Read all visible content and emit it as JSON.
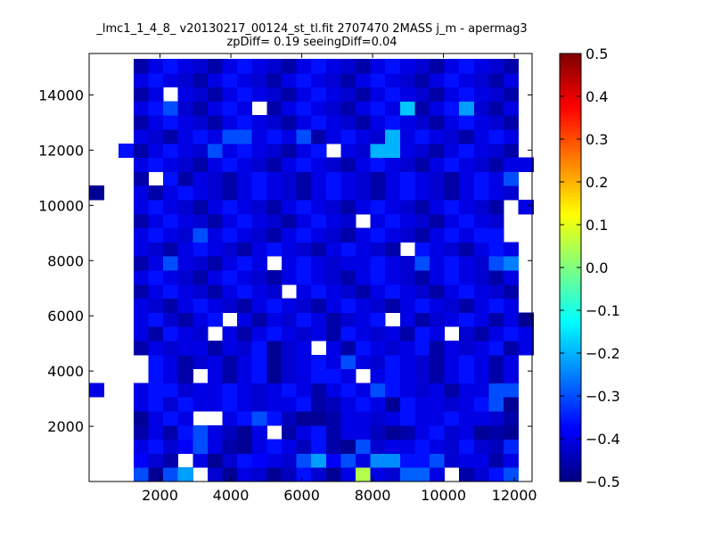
{
  "chart_data": {
    "type": "heatmap",
    "title_lines": [
      "_lmc1_1_4_8_ v20130217_00124_st_tl.fit 2707470 2MASS j_m - apermag3",
      "zpDiff= 0.19 seeingDiff=0.04"
    ],
    "xlabel": "",
    "ylabel": "",
    "x_range": [
      0,
      12500
    ],
    "y_range": [
      0,
      15500
    ],
    "x_ticks": [
      2000,
      4000,
      6000,
      8000,
      10000,
      12000
    ],
    "y_ticks": [
      2000,
      4000,
      6000,
      8000,
      10000,
      12000,
      14000
    ],
    "grid": false,
    "colormap": "jet",
    "colorbar": {
      "min": -0.5,
      "max": 0.5,
      "ticks": [
        -0.5,
        -0.4,
        -0.3,
        -0.2,
        -0.1,
        0.0,
        0.1,
        0.2,
        0.3,
        0.4,
        0.5
      ],
      "tick_labels": [
        "−0.5",
        "−0.4",
        "−0.3",
        "−0.2",
        "−0.1",
        "0.0",
        "0.1",
        "0.2",
        "0.3",
        "0.4",
        "0.5"
      ]
    },
    "x_bin_edges": [
      0,
      418,
      835,
      1253,
      1671,
      2089,
      2506,
      2924,
      3342,
      3759,
      4177,
      4595,
      5013,
      5430,
      5848,
      6266,
      6684,
      7101,
      7519,
      7937,
      8354,
      8772,
      9190,
      9608,
      10025,
      10443,
      10861,
      11278,
      11696,
      12114,
      12532
    ],
    "y_bin_edges": [
      0,
      510,
      1020,
      1531,
      2041,
      2551,
      3061,
      3571,
      4082,
      4592,
      5102,
      5612,
      6122,
      6633,
      7143,
      7653,
      8163,
      8673,
      9184,
      9694,
      10204,
      10714,
      11224,
      11735,
      12245,
      12755,
      13265,
      13776,
      14286,
      14796,
      15306
    ],
    "null_value": "empty bin (white)",
    "cells": [
      [
        null,
        null,
        null,
        -0.3,
        -0.48,
        -0.3,
        -0.22,
        null,
        -0.42,
        -0.48,
        -0.4,
        -0.42,
        -0.48,
        -0.44,
        -0.36,
        -0.42,
        -0.48,
        -0.4,
        0.05,
        -0.4,
        -0.42,
        -0.28,
        -0.28,
        -0.4,
        null,
        -0.46,
        -0.42,
        -0.36,
        -0.3,
        null
      ],
      [
        null,
        null,
        null,
        -0.38,
        -0.42,
        -0.46,
        null,
        -0.4,
        -0.48,
        -0.42,
        -0.36,
        -0.38,
        -0.4,
        -0.42,
        -0.3,
        -0.22,
        -0.38,
        -0.3,
        -0.4,
        -0.24,
        -0.24,
        -0.36,
        -0.36,
        -0.3,
        -0.42,
        -0.4,
        -0.4,
        -0.46,
        -0.4,
        null
      ],
      [
        null,
        null,
        null,
        -0.4,
        -0.36,
        -0.42,
        -0.38,
        -0.3,
        -0.4,
        -0.46,
        -0.48,
        -0.4,
        -0.36,
        -0.4,
        -0.44,
        -0.36,
        -0.46,
        -0.48,
        -0.3,
        -0.42,
        -0.4,
        -0.4,
        -0.36,
        -0.4,
        -0.42,
        -0.36,
        -0.42,
        -0.44,
        -0.34,
        null
      ],
      [
        null,
        null,
        null,
        -0.46,
        -0.4,
        -0.46,
        -0.36,
        -0.3,
        -0.4,
        -0.44,
        -0.48,
        -0.4,
        null,
        -0.46,
        -0.4,
        -0.36,
        -0.46,
        -0.4,
        -0.4,
        -0.44,
        -0.48,
        -0.46,
        -0.4,
        -0.36,
        -0.42,
        -0.4,
        -0.48,
        -0.46,
        -0.48,
        null
      ],
      [
        null,
        null,
        null,
        -0.48,
        -0.4,
        -0.36,
        -0.4,
        null,
        null,
        -0.4,
        -0.36,
        -0.3,
        -0.36,
        -0.44,
        -0.48,
        -0.48,
        -0.46,
        -0.4,
        -0.4,
        -0.42,
        -0.4,
        -0.36,
        -0.4,
        -0.4,
        -0.36,
        -0.4,
        -0.4,
        -0.42,
        -0.46,
        null
      ],
      [
        null,
        null,
        null,
        -0.4,
        -0.36,
        -0.42,
        -0.36,
        -0.4,
        -0.4,
        -0.36,
        -0.4,
        -0.42,
        -0.4,
        -0.4,
        -0.36,
        -0.46,
        -0.44,
        -0.4,
        -0.36,
        -0.4,
        -0.48,
        -0.36,
        -0.4,
        -0.4,
        -0.42,
        -0.4,
        -0.36,
        -0.3,
        -0.48,
        null
      ],
      [
        -0.4,
        null,
        null,
        -0.4,
        -0.36,
        -0.36,
        -0.42,
        -0.4,
        -0.4,
        -0.36,
        -0.4,
        -0.42,
        -0.4,
        -0.36,
        -0.4,
        -0.46,
        -0.4,
        -0.36,
        -0.4,
        -0.3,
        -0.36,
        -0.4,
        -0.42,
        -0.4,
        -0.46,
        -0.4,
        -0.4,
        -0.3,
        -0.3,
        null
      ],
      [
        null,
        null,
        null,
        null,
        -0.36,
        -0.4,
        -0.46,
        null,
        -0.4,
        -0.46,
        -0.4,
        -0.36,
        -0.48,
        -0.42,
        -0.4,
        -0.36,
        -0.36,
        -0.4,
        null,
        -0.4,
        -0.36,
        -0.4,
        -0.42,
        -0.46,
        -0.4,
        -0.36,
        -0.4,
        -0.46,
        -0.4,
        null
      ],
      [
        null,
        null,
        null,
        null,
        -0.36,
        -0.4,
        -0.46,
        -0.42,
        -0.4,
        -0.46,
        -0.4,
        -0.36,
        -0.48,
        -0.42,
        -0.4,
        -0.36,
        -0.4,
        -0.3,
        -0.4,
        -0.42,
        -0.36,
        -0.4,
        -0.42,
        -0.46,
        -0.4,
        -0.36,
        -0.4,
        -0.46,
        -0.4,
        null
      ],
      [
        null,
        null,
        null,
        -0.46,
        -0.4,
        -0.42,
        -0.4,
        -0.4,
        -0.46,
        -0.4,
        -0.42,
        -0.36,
        -0.48,
        -0.42,
        -0.4,
        null,
        -0.4,
        -0.46,
        -0.36,
        -0.4,
        -0.42,
        -0.4,
        -0.36,
        -0.46,
        -0.4,
        -0.42,
        -0.4,
        -0.36,
        -0.46,
        -0.4
      ],
      [
        null,
        null,
        null,
        -0.4,
        -0.46,
        -0.36,
        -0.4,
        -0.42,
        null,
        -0.4,
        -0.46,
        -0.4,
        -0.36,
        -0.4,
        -0.42,
        -0.4,
        -0.46,
        -0.36,
        -0.4,
        -0.42,
        -0.4,
        -0.46,
        -0.36,
        -0.4,
        null,
        -0.42,
        -0.46,
        -0.4,
        -0.36,
        -0.4
      ],
      [
        null,
        null,
        null,
        -0.4,
        -0.36,
        -0.42,
        -0.46,
        -0.4,
        -0.36,
        null,
        -0.4,
        -0.46,
        -0.4,
        -0.42,
        -0.36,
        -0.4,
        -0.46,
        -0.42,
        -0.4,
        -0.36,
        null,
        -0.4,
        -0.46,
        -0.42,
        -0.4,
        -0.36,
        -0.4,
        -0.46,
        -0.4,
        -0.48
      ],
      [
        null,
        null,
        null,
        -0.4,
        -0.42,
        -0.46,
        -0.4,
        -0.36,
        -0.4,
        -0.42,
        -0.46,
        -0.4,
        -0.36,
        -0.4,
        -0.42,
        -0.46,
        -0.4,
        -0.36,
        -0.4,
        -0.42,
        -0.46,
        -0.4,
        -0.36,
        -0.4,
        -0.42,
        -0.46,
        -0.4,
        -0.36,
        -0.4,
        null
      ],
      [
        null,
        null,
        null,
        -0.46,
        -0.4,
        -0.36,
        -0.4,
        -0.42,
        -0.46,
        -0.4,
        -0.36,
        -0.4,
        -0.42,
        null,
        -0.4,
        -0.36,
        -0.4,
        -0.42,
        -0.46,
        -0.4,
        -0.36,
        -0.4,
        -0.42,
        -0.46,
        -0.4,
        -0.36,
        -0.4,
        -0.42,
        -0.46,
        null
      ],
      [
        null,
        null,
        null,
        -0.4,
        -0.36,
        -0.4,
        -0.42,
        -0.46,
        -0.4,
        -0.36,
        -0.4,
        -0.42,
        -0.46,
        -0.4,
        -0.36,
        -0.4,
        -0.42,
        -0.46,
        -0.4,
        -0.36,
        -0.4,
        -0.42,
        -0.46,
        -0.4,
        -0.36,
        -0.4,
        -0.42,
        -0.46,
        -0.4,
        null
      ],
      [
        null,
        null,
        null,
        -0.46,
        -0.4,
        -0.3,
        -0.4,
        -0.42,
        -0.46,
        -0.4,
        -0.36,
        -0.4,
        null,
        -0.4,
        -0.36,
        -0.4,
        -0.42,
        -0.4,
        -0.4,
        -0.36,
        -0.4,
        -0.42,
        -0.3,
        -0.4,
        -0.36,
        -0.4,
        -0.42,
        -0.3,
        -0.25,
        null
      ],
      [
        null,
        null,
        null,
        -0.4,
        -0.42,
        -0.46,
        -0.4,
        -0.36,
        -0.4,
        -0.42,
        -0.46,
        -0.4,
        -0.36,
        -0.4,
        -0.42,
        -0.46,
        -0.4,
        -0.36,
        -0.4,
        -0.42,
        -0.46,
        null,
        -0.36,
        -0.4,
        -0.42,
        -0.46,
        -0.4,
        -0.36,
        -0.4,
        null
      ],
      [
        null,
        null,
        null,
        -0.4,
        -0.36,
        -0.4,
        -0.42,
        -0.3,
        -0.4,
        -0.36,
        -0.4,
        -0.42,
        -0.46,
        -0.4,
        -0.36,
        -0.4,
        -0.42,
        -0.46,
        -0.4,
        -0.36,
        -0.4,
        -0.42,
        -0.46,
        -0.4,
        -0.36,
        -0.4,
        -0.36,
        -0.36,
        null,
        null
      ],
      [
        null,
        null,
        null,
        -0.46,
        -0.4,
        -0.36,
        -0.4,
        -0.42,
        -0.46,
        -0.4,
        -0.36,
        -0.4,
        -0.42,
        -0.46,
        -0.4,
        -0.36,
        -0.4,
        -0.42,
        null,
        -0.4,
        -0.36,
        -0.4,
        -0.42,
        -0.46,
        -0.4,
        -0.36,
        -0.4,
        -0.42,
        null,
        null
      ],
      [
        null,
        null,
        null,
        -0.4,
        -0.36,
        -0.4,
        -0.42,
        -0.46,
        -0.4,
        -0.36,
        -0.4,
        -0.42,
        -0.46,
        -0.4,
        -0.36,
        -0.4,
        -0.42,
        -0.46,
        -0.4,
        -0.36,
        -0.4,
        -0.42,
        -0.46,
        -0.4,
        -0.36,
        -0.4,
        -0.42,
        -0.46,
        null,
        -0.4
      ],
      [
        -0.48,
        null,
        null,
        -0.4,
        -0.46,
        -0.4,
        -0.36,
        -0.4,
        -0.42,
        -0.46,
        -0.4,
        -0.36,
        -0.4,
        -0.42,
        -0.46,
        -0.4,
        -0.36,
        -0.4,
        -0.42,
        -0.46,
        -0.4,
        -0.36,
        -0.4,
        -0.42,
        -0.46,
        -0.4,
        -0.36,
        -0.4,
        -0.42,
        null
      ],
      [
        null,
        null,
        null,
        -0.46,
        null,
        -0.36,
        -0.46,
        -0.4,
        -0.42,
        -0.46,
        -0.4,
        -0.36,
        -0.4,
        -0.42,
        -0.46,
        -0.4,
        -0.36,
        -0.4,
        -0.42,
        -0.46,
        -0.4,
        -0.36,
        -0.4,
        -0.42,
        -0.46,
        -0.4,
        -0.36,
        -0.4,
        -0.3,
        null
      ],
      [
        null,
        null,
        null,
        -0.4,
        -0.36,
        -0.4,
        -0.42,
        -0.46,
        -0.4,
        -0.36,
        -0.4,
        -0.42,
        -0.46,
        -0.4,
        -0.36,
        -0.4,
        -0.42,
        -0.46,
        -0.4,
        -0.36,
        -0.4,
        -0.42,
        -0.46,
        -0.4,
        -0.36,
        -0.4,
        -0.42,
        -0.46,
        -0.4,
        -0.4
      ],
      [
        null,
        null,
        -0.36,
        -0.46,
        -0.4,
        -0.36,
        -0.4,
        -0.42,
        -0.3,
        -0.4,
        -0.36,
        -0.4,
        -0.42,
        -0.46,
        -0.4,
        -0.36,
        null,
        -0.4,
        -0.42,
        -0.2,
        -0.2,
        -0.4,
        -0.42,
        -0.46,
        -0.4,
        -0.36,
        -0.4,
        -0.42,
        -0.46,
        null
      ],
      [
        null,
        null,
        null,
        -0.4,
        -0.42,
        -0.46,
        -0.4,
        -0.36,
        -0.4,
        -0.3,
        -0.3,
        -0.4,
        -0.36,
        -0.4,
        -0.3,
        -0.46,
        -0.4,
        -0.36,
        -0.4,
        -0.42,
        -0.2,
        -0.4,
        -0.36,
        -0.4,
        -0.42,
        -0.46,
        -0.4,
        -0.36,
        -0.4,
        null
      ],
      [
        null,
        null,
        null,
        -0.46,
        -0.4,
        -0.36,
        -0.4,
        -0.42,
        -0.46,
        -0.4,
        -0.36,
        -0.4,
        -0.42,
        -0.46,
        -0.4,
        -0.36,
        -0.4,
        -0.42,
        -0.46,
        -0.4,
        -0.36,
        -0.4,
        -0.42,
        -0.46,
        -0.4,
        -0.36,
        -0.4,
        -0.42,
        -0.46,
        null
      ],
      [
        null,
        null,
        null,
        -0.4,
        -0.36,
        -0.3,
        -0.42,
        -0.46,
        -0.4,
        -0.36,
        -0.4,
        null,
        -0.46,
        -0.4,
        -0.36,
        -0.4,
        -0.42,
        -0.46,
        -0.4,
        -0.36,
        -0.4,
        -0.18,
        -0.46,
        -0.4,
        -0.36,
        -0.22,
        -0.42,
        -0.46,
        -0.4,
        null
      ],
      [
        null,
        null,
        null,
        -0.46,
        -0.4,
        null,
        -0.4,
        -0.42,
        -0.46,
        -0.4,
        -0.36,
        -0.4,
        -0.42,
        -0.46,
        -0.4,
        -0.36,
        -0.4,
        -0.42,
        -0.46,
        -0.4,
        -0.36,
        -0.4,
        -0.42,
        -0.46,
        -0.4,
        -0.36,
        -0.4,
        -0.42,
        -0.46,
        null
      ],
      [
        null,
        null,
        null,
        -0.4,
        -0.36,
        -0.4,
        -0.42,
        -0.46,
        -0.4,
        -0.36,
        -0.4,
        -0.42,
        -0.46,
        -0.4,
        -0.36,
        -0.4,
        -0.42,
        -0.46,
        -0.4,
        -0.36,
        -0.4,
        -0.42,
        -0.46,
        -0.4,
        -0.36,
        -0.4,
        -0.42,
        -0.46,
        -0.4,
        null
      ],
      [
        null,
        null,
        null,
        -0.46,
        -0.4,
        -0.36,
        -0.4,
        -0.42,
        -0.46,
        -0.4,
        -0.36,
        -0.4,
        -0.42,
        -0.46,
        -0.4,
        -0.36,
        -0.4,
        -0.42,
        -0.46,
        -0.4,
        -0.36,
        -0.4,
        -0.42,
        -0.46,
        -0.4,
        -0.36,
        -0.4,
        -0.42,
        -0.46,
        null
      ]
    ]
  }
}
